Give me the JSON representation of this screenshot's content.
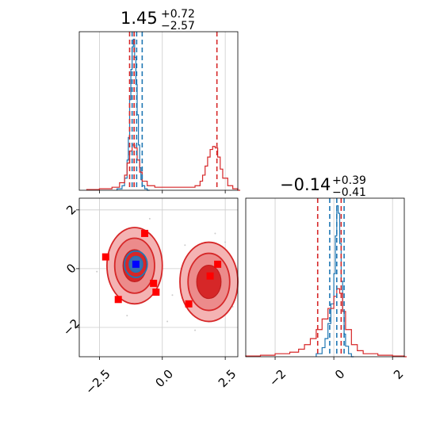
{
  "chart_data": [
    {
      "type": "histogram",
      "panel": "top-left",
      "title": {
        "value": "1.45",
        "sup": "+0.72",
        "sub": "−2.57"
      },
      "xlim": [
        -3.3,
        3.0
      ],
      "grid": true,
      "x_ticks": [
        -2.5,
        0.0,
        2.5
      ],
      "x_tick_labels": [],
      "series": [
        {
          "color": "#1f77b4",
          "x": [
            -1.8,
            -1.6,
            -1.5,
            -1.4,
            -1.35,
            -1.3,
            -1.25,
            -1.2,
            -1.15,
            -1.1,
            -1.05,
            -1.0,
            -0.95,
            -0.9,
            -0.85,
            -0.8,
            -0.7,
            -0.6
          ],
          "y": [
            0.01,
            0.03,
            0.08,
            0.2,
            0.35,
            0.6,
            0.8,
            0.95,
            1.0,
            0.88,
            0.7,
            0.5,
            0.3,
            0.15,
            0.07,
            0.03,
            0.01,
            0.0
          ]
        },
        {
          "color": "#d62728",
          "x": [
            -3.0,
            -2.5,
            -2.0,
            -1.7,
            -1.5,
            -1.4,
            -1.3,
            -1.2,
            -1.1,
            -1.0,
            -0.9,
            -0.8,
            -0.6,
            -0.3,
            0.0,
            0.5,
            1.0,
            1.3,
            1.5,
            1.6,
            1.7,
            1.8,
            1.9,
            2.0,
            2.1,
            2.2,
            2.3,
            2.4,
            2.6,
            2.8,
            3.0
          ],
          "y": [
            0.005,
            0.01,
            0.02,
            0.05,
            0.1,
            0.18,
            0.26,
            0.3,
            0.28,
            0.2,
            0.12,
            0.06,
            0.03,
            0.02,
            0.02,
            0.02,
            0.02,
            0.03,
            0.06,
            0.1,
            0.16,
            0.22,
            0.27,
            0.29,
            0.28,
            0.22,
            0.14,
            0.08,
            0.03,
            0.01,
            0.0
          ]
        }
      ],
      "quantile_lines": [
        {
          "x": -1.12,
          "color": "#d62728"
        },
        {
          "x": -1.3,
          "color": "#d62728"
        },
        {
          "x": 2.17,
          "color": "#d62728"
        },
        {
          "x": -1.2,
          "color": "#1f77b4"
        },
        {
          "x": -1.02,
          "color": "#1f77b4"
        },
        {
          "x": -0.8,
          "color": "#1f77b4"
        }
      ]
    },
    {
      "type": "contour",
      "panel": "bottom-left",
      "xlim": [
        -3.3,
        3.0
      ],
      "ylim": [
        -3.0,
        2.4
      ],
      "grid": true,
      "x_ticks": [
        -2.5,
        0.0,
        2.5
      ],
      "x_tick_labels": [
        "−2.5",
        "0.0",
        "2.5"
      ],
      "y_ticks": [
        -2,
        0,
        2
      ],
      "y_tick_labels": [
        "−2",
        "0",
        "2"
      ],
      "red_contour_blobs": [
        {
          "cx": -1.1,
          "cy": 0.1,
          "rx": 1.1,
          "ry": 1.3
        },
        {
          "cx": 1.85,
          "cy": -0.45,
          "rx": 1.15,
          "ry": 1.35
        }
      ],
      "blue_contour_blobs": [
        {
          "cx": -1.05,
          "cy": 0.15,
          "rx": 0.45,
          "ry": 0.45
        }
      ],
      "red_points": [
        {
          "x": -0.7,
          "y": 1.2
        },
        {
          "x": -2.25,
          "y": 0.4
        },
        {
          "x": -0.35,
          "y": -0.5
        },
        {
          "x": -0.25,
          "y": -0.8
        },
        {
          "x": -1.75,
          "y": -1.05
        },
        {
          "x": 1.05,
          "y": -1.2
        },
        {
          "x": 1.9,
          "y": -0.25
        },
        {
          "x": 2.2,
          "y": 0.15
        }
      ],
      "blue_point": {
        "x": -1.05,
        "y": 0.15
      }
    },
    {
      "type": "histogram",
      "panel": "bottom-right",
      "title": {
        "value": "−0.14",
        "sup": "+0.39",
        "sub": "−0.41"
      },
      "xlim": [
        -3.0,
        2.4
      ],
      "grid": true,
      "x_ticks": [
        -2,
        0,
        2
      ],
      "x_tick_labels": [
        "−2",
        "0",
        "2"
      ],
      "series": [
        {
          "color": "#1f77b4",
          "x": [
            -0.6,
            -0.4,
            -0.3,
            -0.2,
            -0.1,
            0.0,
            0.05,
            0.1,
            0.15,
            0.2,
            0.25,
            0.3,
            0.35,
            0.4,
            0.5,
            0.6
          ],
          "y": [
            0.02,
            0.06,
            0.12,
            0.22,
            0.35,
            0.55,
            0.8,
            1.0,
            0.95,
            0.75,
            0.5,
            0.3,
            0.15,
            0.07,
            0.02,
            0.0
          ]
        },
        {
          "color": "#d62728",
          "x": [
            -3.0,
            -2.5,
            -2.0,
            -1.5,
            -1.2,
            -1.0,
            -0.8,
            -0.6,
            -0.4,
            -0.2,
            0.0,
            0.1,
            0.2,
            0.3,
            0.4,
            0.6,
            0.8,
            1.0,
            1.5,
            2.0,
            2.4
          ],
          "y": [
            0.005,
            0.01,
            0.02,
            0.03,
            0.05,
            0.08,
            0.12,
            0.18,
            0.25,
            0.32,
            0.4,
            0.45,
            0.42,
            0.3,
            0.18,
            0.08,
            0.04,
            0.02,
            0.01,
            0.005,
            0.0
          ]
        }
      ],
      "quantile_lines": [
        {
          "x": -0.55,
          "color": "#d62728"
        },
        {
          "x": 0.25,
          "color": "#d62728"
        },
        {
          "x": -0.14,
          "color": "#1f77b4"
        },
        {
          "x": 0.1,
          "color": "#1f77b4"
        },
        {
          "x": 0.35,
          "color": "#1f77b4"
        }
      ]
    }
  ]
}
